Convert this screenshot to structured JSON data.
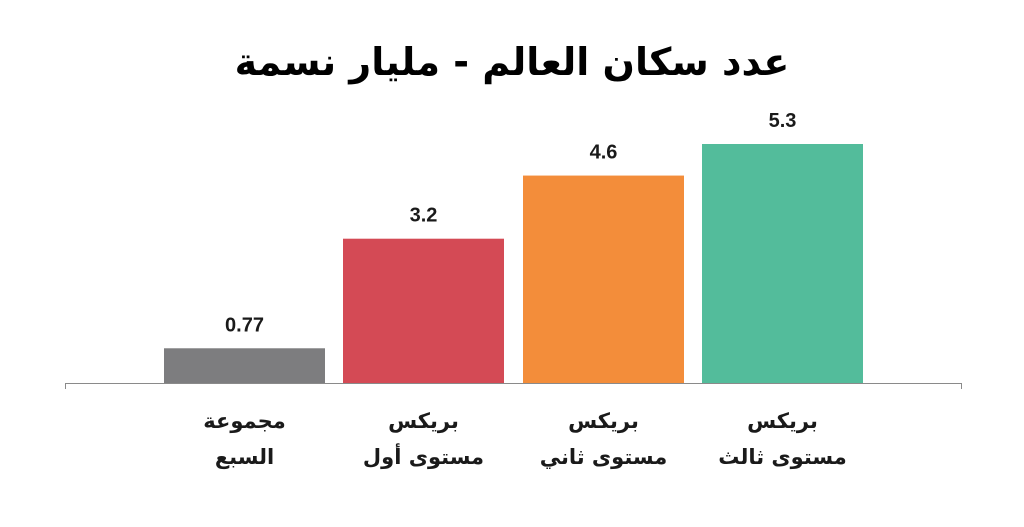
{
  "chart_data": {
    "type": "bar",
    "title": "عدد سكان العالم - مليار نسمة",
    "xlabel": "",
    "ylabel": "",
    "ylim": [
      0,
      5.3
    ],
    "grid": false,
    "legend": "none",
    "categories": [
      [
        "مجموعة",
        "السبع"
      ],
      [
        "بريكس",
        "مستوى أول"
      ],
      [
        "بريكس",
        "مستوى ثاني"
      ],
      [
        "بريكس",
        "مستوى ثالث"
      ]
    ],
    "values": [
      0.77,
      3.2,
      4.6,
      5.3
    ],
    "value_labels": [
      "0.77",
      "3.2",
      "4.6",
      "5.3"
    ],
    "colors": [
      "#7d7d7f",
      "#d44a55",
      "#f38d3a",
      "#53bc9b"
    ],
    "axis_color": "#8a8a8a"
  }
}
